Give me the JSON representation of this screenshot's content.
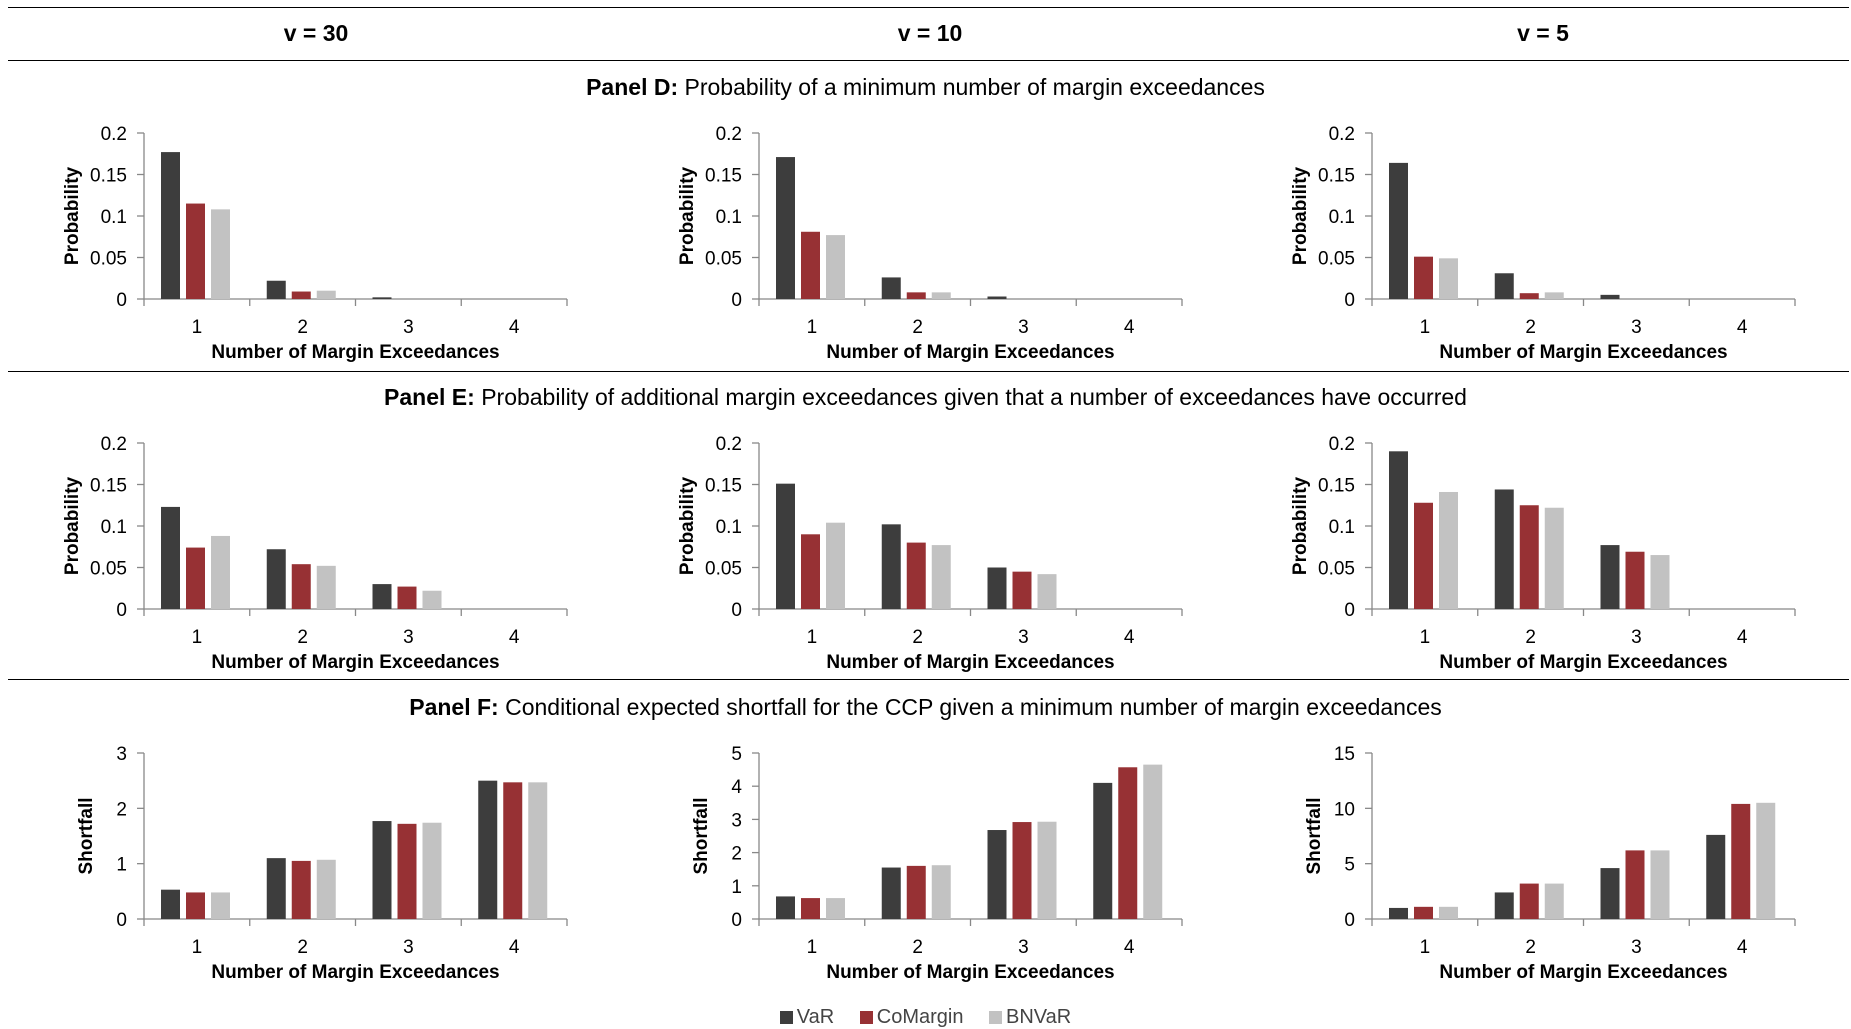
{
  "columns": [
    "v = 30",
    "v = 10",
    "v = 5"
  ],
  "panels": [
    {
      "label": "Panel D:",
      "title": "Probability of a minimum number of margin exceedances"
    },
    {
      "label": "Panel E:",
      "title": "Probability of additional margin exceedances given that a number of exceedances have occurred"
    },
    {
      "label": "Panel F:",
      "title": "Conditional expected shortfall for the CCP given a minimum number of margin exceedances"
    }
  ],
  "legend": [
    {
      "name": "VaR",
      "color": "#3d3d3d"
    },
    {
      "name": "CoMargin",
      "color": "#973134"
    },
    {
      "name": "BNVaR",
      "color": "#c2c2c2"
    }
  ],
  "chart_data": [
    {
      "type": "bar",
      "panel": "D",
      "column": "v = 30",
      "categories": [
        "1",
        "2",
        "3",
        "4"
      ],
      "xlabel": "Number of Margin Exceedances",
      "ylabel": "Probability",
      "ylim": [
        0,
        0.2
      ],
      "yticks": [
        "0",
        "0.05",
        "0.1",
        "0.15",
        "0.2"
      ],
      "series": [
        {
          "name": "VaR",
          "values": [
            0.177,
            0.022,
            0.002,
            0.0
          ]
        },
        {
          "name": "CoMargin",
          "values": [
            0.115,
            0.009,
            0.0,
            0.0
          ]
        },
        {
          "name": "BNVaR",
          "values": [
            0.108,
            0.01,
            0.0,
            0.0
          ]
        }
      ]
    },
    {
      "type": "bar",
      "panel": "D",
      "column": "v = 10",
      "categories": [
        "1",
        "2",
        "3",
        "4"
      ],
      "xlabel": "Number of Margin Exceedances",
      "ylabel": "Probability",
      "ylim": [
        0,
        0.2
      ],
      "yticks": [
        "0",
        "0.05",
        "0.1",
        "0.15",
        "0.2"
      ],
      "series": [
        {
          "name": "VaR",
          "values": [
            0.171,
            0.026,
            0.003,
            0.0
          ]
        },
        {
          "name": "CoMargin",
          "values": [
            0.081,
            0.008,
            0.0,
            0.0
          ]
        },
        {
          "name": "BNVaR",
          "values": [
            0.077,
            0.008,
            0.0,
            0.0
          ]
        }
      ]
    },
    {
      "type": "bar",
      "panel": "D",
      "column": "v = 5",
      "categories": [
        "1",
        "2",
        "3",
        "4"
      ],
      "xlabel": "Number of Margin Exceedances",
      "ylabel": "Probability",
      "ylim": [
        0,
        0.2
      ],
      "yticks": [
        "0",
        "0.05",
        "0.1",
        "0.15",
        "0.2"
      ],
      "series": [
        {
          "name": "VaR",
          "values": [
            0.164,
            0.031,
            0.005,
            0.0
          ]
        },
        {
          "name": "CoMargin",
          "values": [
            0.051,
            0.007,
            0.0,
            0.0
          ]
        },
        {
          "name": "BNVaR",
          "values": [
            0.049,
            0.008,
            0.0,
            0.0
          ]
        }
      ]
    },
    {
      "type": "bar",
      "panel": "E",
      "column": "v = 30",
      "categories": [
        "1",
        "2",
        "3",
        "4"
      ],
      "xlabel": "Number of Margin Exceedances",
      "ylabel": "Probability",
      "ylim": [
        0,
        0.2
      ],
      "yticks": [
        "0",
        "0.05",
        "0.1",
        "0.15",
        "0.2"
      ],
      "series": [
        {
          "name": "VaR",
          "values": [
            0.123,
            0.072,
            0.03,
            0.0
          ]
        },
        {
          "name": "CoMargin",
          "values": [
            0.074,
            0.054,
            0.027,
            0.0
          ]
        },
        {
          "name": "BNVaR",
          "values": [
            0.088,
            0.052,
            0.022,
            0.0
          ]
        }
      ]
    },
    {
      "type": "bar",
      "panel": "E",
      "column": "v = 10",
      "categories": [
        "1",
        "2",
        "3",
        "4"
      ],
      "xlabel": "Number of Margin Exceedances",
      "ylabel": "Probability",
      "ylim": [
        0,
        0.2
      ],
      "yticks": [
        "0",
        "0.05",
        "0.1",
        "0.15",
        "0.2"
      ],
      "series": [
        {
          "name": "VaR",
          "values": [
            0.151,
            0.102,
            0.05,
            0.0
          ]
        },
        {
          "name": "CoMargin",
          "values": [
            0.09,
            0.08,
            0.045,
            0.0
          ]
        },
        {
          "name": "BNVaR",
          "values": [
            0.104,
            0.077,
            0.042,
            0.0
          ]
        }
      ]
    },
    {
      "type": "bar",
      "panel": "E",
      "column": "v = 5",
      "categories": [
        "1",
        "2",
        "3",
        "4"
      ],
      "xlabel": "Number of Margin Exceedances",
      "ylabel": "Probability",
      "ylim": [
        0,
        0.2
      ],
      "yticks": [
        "0",
        "0.05",
        "0.1",
        "0.15",
        "0.2"
      ],
      "series": [
        {
          "name": "VaR",
          "values": [
            0.19,
            0.144,
            0.077,
            0.0
          ]
        },
        {
          "name": "CoMargin",
          "values": [
            0.128,
            0.125,
            0.069,
            0.0
          ]
        },
        {
          "name": "BNVaR",
          "values": [
            0.141,
            0.122,
            0.065,
            0.0
          ]
        }
      ]
    },
    {
      "type": "bar",
      "panel": "F",
      "column": "v = 30",
      "categories": [
        "1",
        "2",
        "3",
        "4"
      ],
      "xlabel": "Number of Margin Exceedances",
      "ylabel": "Shortfall",
      "ylim": [
        0,
        3
      ],
      "yticks": [
        "0",
        "1",
        "2",
        "3"
      ],
      "series": [
        {
          "name": "VaR",
          "values": [
            0.53,
            1.1,
            1.77,
            2.5
          ]
        },
        {
          "name": "CoMargin",
          "values": [
            0.48,
            1.05,
            1.72,
            2.47
          ]
        },
        {
          "name": "BNVaR",
          "values": [
            0.48,
            1.07,
            1.74,
            2.47
          ]
        }
      ]
    },
    {
      "type": "bar",
      "panel": "F",
      "column": "v = 10",
      "categories": [
        "1",
        "2",
        "3",
        "4"
      ],
      "xlabel": "Number of Margin Exceedances",
      "ylabel": "Shortfall",
      "ylim": [
        0,
        5
      ],
      "yticks": [
        "0",
        "1",
        "2",
        "3",
        "4",
        "5"
      ],
      "series": [
        {
          "name": "VaR",
          "values": [
            0.68,
            1.55,
            2.68,
            4.1
          ]
        },
        {
          "name": "CoMargin",
          "values": [
            0.63,
            1.6,
            2.92,
            4.57
          ]
        },
        {
          "name": "BNVaR",
          "values": [
            0.63,
            1.62,
            2.93,
            4.65
          ]
        }
      ]
    },
    {
      "type": "bar",
      "panel": "F",
      "column": "v = 5",
      "categories": [
        "1",
        "2",
        "3",
        "4"
      ],
      "xlabel": "Number of Margin Exceedances",
      "ylabel": "Shortfall",
      "ylim": [
        0,
        15
      ],
      "yticks": [
        "0",
        "5",
        "10",
        "15"
      ],
      "series": [
        {
          "name": "VaR",
          "values": [
            1.0,
            2.4,
            4.6,
            7.6
          ]
        },
        {
          "name": "CoMargin",
          "values": [
            1.1,
            3.2,
            6.2,
            10.4
          ]
        },
        {
          "name": "BNVaR",
          "values": [
            1.1,
            3.2,
            6.2,
            10.5
          ]
        }
      ]
    }
  ]
}
